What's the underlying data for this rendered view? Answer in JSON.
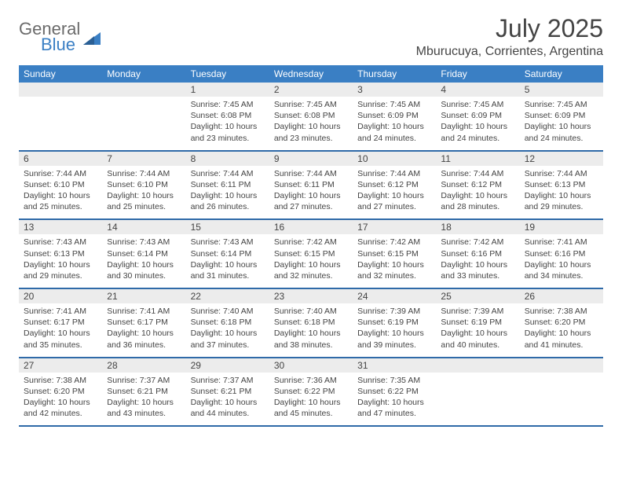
{
  "logo": {
    "text_gray": "General",
    "text_blue": "Blue"
  },
  "title": "July 2025",
  "location": "Mburucuya, Corrientes, Argentina",
  "colors": {
    "header_bg": "#3a7fc4",
    "header_text": "#ffffff",
    "daynum_bg": "#ececec",
    "rule": "#2f6aa8",
    "body_text": "#444444",
    "logo_gray": "#6a6a6a",
    "logo_blue": "#3a7fc4"
  },
  "weekdays": [
    "Sunday",
    "Monday",
    "Tuesday",
    "Wednesday",
    "Thursday",
    "Friday",
    "Saturday"
  ],
  "weeks": [
    [
      null,
      null,
      {
        "n": "1",
        "sr": "7:45 AM",
        "ss": "6:08 PM",
        "dl": "10 hours and 23 minutes."
      },
      {
        "n": "2",
        "sr": "7:45 AM",
        "ss": "6:08 PM",
        "dl": "10 hours and 23 minutes."
      },
      {
        "n": "3",
        "sr": "7:45 AM",
        "ss": "6:09 PM",
        "dl": "10 hours and 24 minutes."
      },
      {
        "n": "4",
        "sr": "7:45 AM",
        "ss": "6:09 PM",
        "dl": "10 hours and 24 minutes."
      },
      {
        "n": "5",
        "sr": "7:45 AM",
        "ss": "6:09 PM",
        "dl": "10 hours and 24 minutes."
      }
    ],
    [
      {
        "n": "6",
        "sr": "7:44 AM",
        "ss": "6:10 PM",
        "dl": "10 hours and 25 minutes."
      },
      {
        "n": "7",
        "sr": "7:44 AM",
        "ss": "6:10 PM",
        "dl": "10 hours and 25 minutes."
      },
      {
        "n": "8",
        "sr": "7:44 AM",
        "ss": "6:11 PM",
        "dl": "10 hours and 26 minutes."
      },
      {
        "n": "9",
        "sr": "7:44 AM",
        "ss": "6:11 PM",
        "dl": "10 hours and 27 minutes."
      },
      {
        "n": "10",
        "sr": "7:44 AM",
        "ss": "6:12 PM",
        "dl": "10 hours and 27 minutes."
      },
      {
        "n": "11",
        "sr": "7:44 AM",
        "ss": "6:12 PM",
        "dl": "10 hours and 28 minutes."
      },
      {
        "n": "12",
        "sr": "7:44 AM",
        "ss": "6:13 PM",
        "dl": "10 hours and 29 minutes."
      }
    ],
    [
      {
        "n": "13",
        "sr": "7:43 AM",
        "ss": "6:13 PM",
        "dl": "10 hours and 29 minutes."
      },
      {
        "n": "14",
        "sr": "7:43 AM",
        "ss": "6:14 PM",
        "dl": "10 hours and 30 minutes."
      },
      {
        "n": "15",
        "sr": "7:43 AM",
        "ss": "6:14 PM",
        "dl": "10 hours and 31 minutes."
      },
      {
        "n": "16",
        "sr": "7:42 AM",
        "ss": "6:15 PM",
        "dl": "10 hours and 32 minutes."
      },
      {
        "n": "17",
        "sr": "7:42 AM",
        "ss": "6:15 PM",
        "dl": "10 hours and 32 minutes."
      },
      {
        "n": "18",
        "sr": "7:42 AM",
        "ss": "6:16 PM",
        "dl": "10 hours and 33 minutes."
      },
      {
        "n": "19",
        "sr": "7:41 AM",
        "ss": "6:16 PM",
        "dl": "10 hours and 34 minutes."
      }
    ],
    [
      {
        "n": "20",
        "sr": "7:41 AM",
        "ss": "6:17 PM",
        "dl": "10 hours and 35 minutes."
      },
      {
        "n": "21",
        "sr": "7:41 AM",
        "ss": "6:17 PM",
        "dl": "10 hours and 36 minutes."
      },
      {
        "n": "22",
        "sr": "7:40 AM",
        "ss": "6:18 PM",
        "dl": "10 hours and 37 minutes."
      },
      {
        "n": "23",
        "sr": "7:40 AM",
        "ss": "6:18 PM",
        "dl": "10 hours and 38 minutes."
      },
      {
        "n": "24",
        "sr": "7:39 AM",
        "ss": "6:19 PM",
        "dl": "10 hours and 39 minutes."
      },
      {
        "n": "25",
        "sr": "7:39 AM",
        "ss": "6:19 PM",
        "dl": "10 hours and 40 minutes."
      },
      {
        "n": "26",
        "sr": "7:38 AM",
        "ss": "6:20 PM",
        "dl": "10 hours and 41 minutes."
      }
    ],
    [
      {
        "n": "27",
        "sr": "7:38 AM",
        "ss": "6:20 PM",
        "dl": "10 hours and 42 minutes."
      },
      {
        "n": "28",
        "sr": "7:37 AM",
        "ss": "6:21 PM",
        "dl": "10 hours and 43 minutes."
      },
      {
        "n": "29",
        "sr": "7:37 AM",
        "ss": "6:21 PM",
        "dl": "10 hours and 44 minutes."
      },
      {
        "n": "30",
        "sr": "7:36 AM",
        "ss": "6:22 PM",
        "dl": "10 hours and 45 minutes."
      },
      {
        "n": "31",
        "sr": "7:35 AM",
        "ss": "6:22 PM",
        "dl": "10 hours and 47 minutes."
      },
      null,
      null
    ]
  ],
  "labels": {
    "sunrise": "Sunrise:",
    "sunset": "Sunset:",
    "daylight": "Daylight:"
  }
}
